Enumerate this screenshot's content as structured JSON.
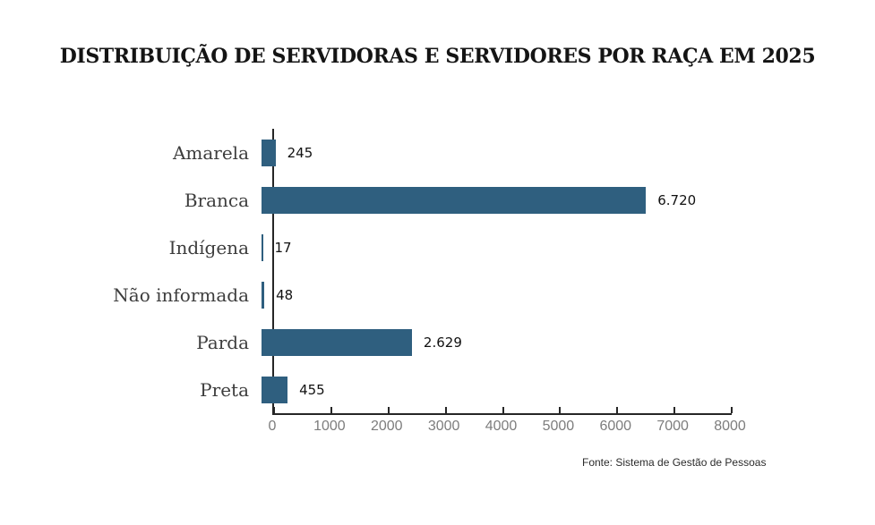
{
  "title": "DISTRIBUIÇÃO DE SERVIDORAS E SERVIDORES POR RAÇA EM 2025",
  "source": "Fonte: Sistema de Gestão de Pessoas",
  "colors": {
    "bar": "#2f5f7f",
    "axis": "#262626",
    "tick_label": "#7d7d7d",
    "category_label": "#3d3d3d",
    "value_label": "#111111",
    "background": "#ffffff"
  },
  "chart_data": {
    "type": "bar",
    "orientation": "horizontal",
    "title": "DISTRIBUIÇÃO DE SERVIDORAS E SERVIDORES POR RAÇA EM 2025",
    "categories": [
      "Amarela",
      "Branca",
      "Indígena",
      "Não informada",
      "Parda",
      "Preta"
    ],
    "values": [
      245,
      6720,
      17,
      48,
      2629,
      455
    ],
    "value_labels": [
      "245",
      "6.720",
      "17",
      "48",
      "2.629",
      "455"
    ],
    "xlabel": "",
    "ylabel": "",
    "xlim": [
      0,
      8000
    ],
    "x_ticks": [
      0,
      1000,
      2000,
      3000,
      4000,
      5000,
      6000,
      7000,
      8000
    ],
    "x_tick_labels": [
      "0",
      "1000",
      "2000",
      "3000",
      "4000",
      "5000",
      "6000",
      "7000",
      "8000"
    ],
    "grid": false,
    "legend": false,
    "source": "Fonte: Sistema de Gestão de Pessoas"
  }
}
